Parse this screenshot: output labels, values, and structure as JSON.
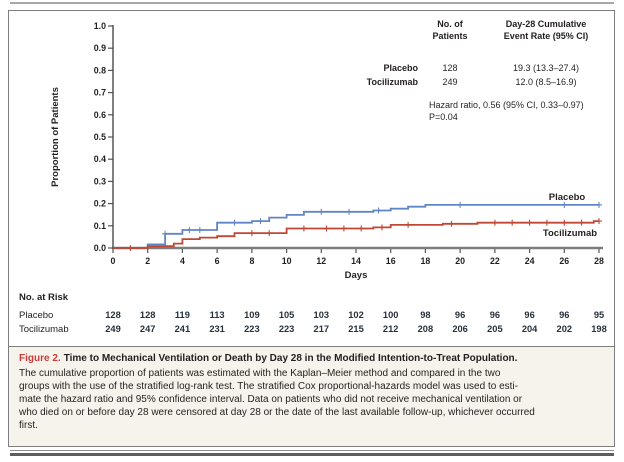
{
  "figure": {
    "caption_label": "Figure 2.",
    "caption_title": "Time to Mechanical Ventilation or Death by Day 28 in the Modified Intention-to-Treat Population.",
    "caption_body": "The cumulative proportion of patients was estimated with the Kaplan–Meier method and compared in the two\ngroups with the use of the stratified log-rank test. The stratified Cox proportional-hazards model was used to esti-\nmate the hazard ratio and 95% confidence interval. Data on patients who did not receive mechanical ventilation or\nwho died on or before day 28 were censored at day 28 or the date of the last available follow-up, whichever occurred\nfirst."
  },
  "stats": {
    "col1_header": "No. of\nPatients",
    "col2_header": "Day-28 Cumulative\nEvent Rate (95% CI)",
    "rows": [
      {
        "label": "Placebo",
        "n": "128",
        "rate": "19.3 (13.3–27.4)"
      },
      {
        "label": "Tocilizumab",
        "n": "249",
        "rate": "12.0 (8.5–16.9)"
      }
    ],
    "hazard_line": "Hazard ratio, 0.56 (95% CI, 0.33–0.97)",
    "p_line": "P=0.04"
  },
  "chart_data": {
    "type": "line",
    "subtype": "kaplan-meier-step",
    "title": "",
    "xlabel": "Days",
    "ylabel": "Proportion of Patients",
    "xlim": [
      0,
      28
    ],
    "ylim": [
      0,
      1.0
    ],
    "x_ticks": [
      0,
      2,
      4,
      6,
      8,
      10,
      12,
      14,
      16,
      18,
      20,
      22,
      24,
      26,
      28
    ],
    "y_ticks": [
      0,
      0.1,
      0.2,
      0.3,
      0.4,
      0.5,
      0.6,
      0.7,
      0.8,
      0.9,
      1.0
    ],
    "grid": false,
    "legend_position": "inline-right",
    "series": [
      {
        "name": "Placebo",
        "color": "#6286c5",
        "day28_event_rate_pct": 19.3,
        "steps": [
          [
            0,
            0
          ],
          [
            2,
            0.016
          ],
          [
            3,
            0.064
          ],
          [
            4,
            0.081
          ],
          [
            6,
            0.114
          ],
          [
            8,
            0.121
          ],
          [
            9,
            0.137
          ],
          [
            10,
            0.149
          ],
          [
            11,
            0.163
          ],
          [
            15,
            0.169
          ],
          [
            16,
            0.177
          ],
          [
            17,
            0.186
          ],
          [
            18,
            0.194
          ],
          [
            28,
            0.194
          ]
        ],
        "censor_days": [
          3,
          4.4,
          5,
          7,
          8.5,
          12,
          13.6,
          15.3,
          20,
          26,
          28
        ]
      },
      {
        "name": "Tocilizumab",
        "color": "#bf4733",
        "day28_event_rate_pct": 12.0,
        "steps": [
          [
            0,
            0
          ],
          [
            2,
            0.008
          ],
          [
            3.5,
            0.02
          ],
          [
            4,
            0.04
          ],
          [
            5,
            0.047
          ],
          [
            6,
            0.053
          ],
          [
            7,
            0.067
          ],
          [
            10,
            0.088
          ],
          [
            15,
            0.093
          ],
          [
            16,
            0.104
          ],
          [
            19,
            0.109
          ],
          [
            21,
            0.114
          ],
          [
            27.7,
            0.121
          ],
          [
            28,
            0.121
          ]
        ],
        "censor_days": [
          1,
          8,
          9,
          11,
          12.3,
          13.3,
          14.3,
          15.5,
          17,
          19.5,
          22,
          23,
          24,
          25,
          26,
          27,
          28
        ]
      }
    ],
    "risk_table": {
      "header": "No. at Risk",
      "days": [
        0,
        2,
        4,
        6,
        8,
        10,
        12,
        14,
        16,
        18,
        20,
        22,
        24,
        26,
        28
      ],
      "rows": [
        {
          "label": "Placebo",
          "counts": [
            128,
            128,
            119,
            113,
            109,
            105,
            103,
            102,
            100,
            98,
            96,
            96,
            96,
            96,
            95
          ]
        },
        {
          "label": "Tocilizumab",
          "counts": [
            249,
            247,
            241,
            231,
            223,
            223,
            217,
            215,
            212,
            208,
            206,
            205,
            204,
            202,
            198
          ]
        }
      ]
    }
  }
}
